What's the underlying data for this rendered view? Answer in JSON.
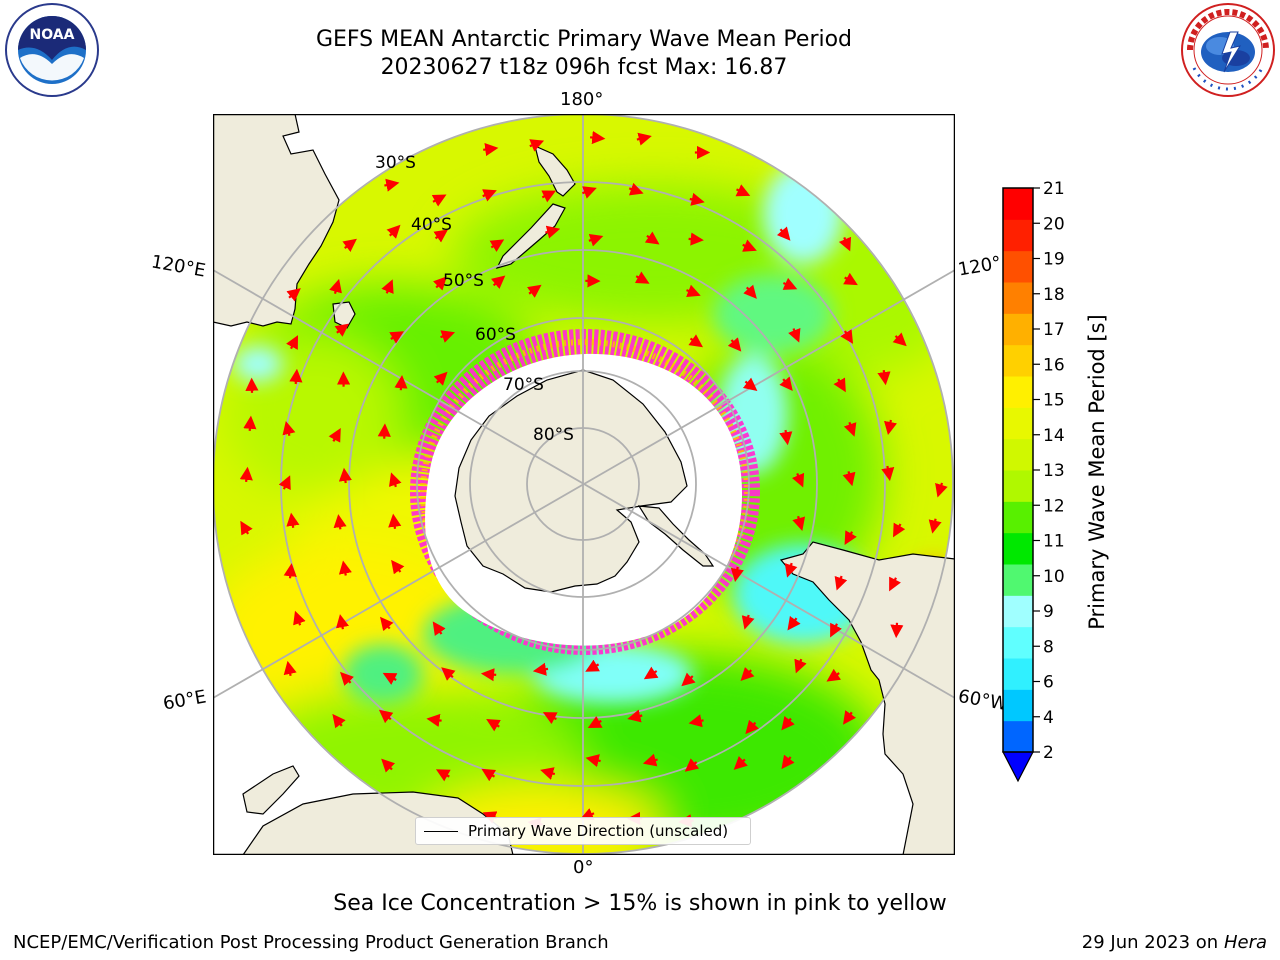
{
  "header": {
    "title_line1": "GEFS MEAN Antarctic Primary Wave Mean Period",
    "title_line2": "20230627 t18z 096h fcst   Max: 16.87"
  },
  "logos": {
    "left": "noaa-logo",
    "left_text": "NOAA",
    "right": "nws-logo"
  },
  "map": {
    "projection": "south-polar-stereographic",
    "lon_labels": {
      "top": "180°",
      "bottom": "0°",
      "left_upper": "120°E",
      "left_lower": "60°E",
      "right_upper": "120°",
      "right_lower": "60°W"
    },
    "lat_labels": [
      "30°S",
      "40°S",
      "50°S",
      "60°S",
      "70°S",
      "80°S"
    ],
    "colors": {
      "land": "#efecdc",
      "sea_ice_core": "#ffffff",
      "ice_edge_pink": "#ff1fd0",
      "ice_edge_yellow": "#ffc000",
      "grid": "#b0b0b0",
      "arrow": "#ff0000"
    },
    "legend_label": "Primary Wave Direction (unscaled)"
  },
  "colorbar": {
    "title": "Primary Wave Mean Period [s]",
    "ticks": [
      "2",
      "4",
      "6",
      "8",
      "9",
      "10",
      "11",
      "12",
      "13",
      "14",
      "15",
      "16",
      "17",
      "18",
      "19",
      "20",
      "21"
    ],
    "colors": [
      "#0066ff",
      "#00c8ff",
      "#30f0ff",
      "#60ffff",
      "#a0ffff",
      "#50f870",
      "#00e800",
      "#58f000",
      "#b0f800",
      "#d0f800",
      "#e8f800",
      "#fff000",
      "#ffd000",
      "#ffb000",
      "#ff8000",
      "#ff5000",
      "#ff2000",
      "#ff0000"
    ],
    "extend_color": "#0000ff"
  },
  "caption": "Sea Ice Concentration > 15% is shown in pink to yellow",
  "footer": {
    "left": "NCEP/EMC/Verification Post Processing Product Generation Branch",
    "right_date": "29 Jun 2023 on",
    "right_machine": "Hera"
  }
}
